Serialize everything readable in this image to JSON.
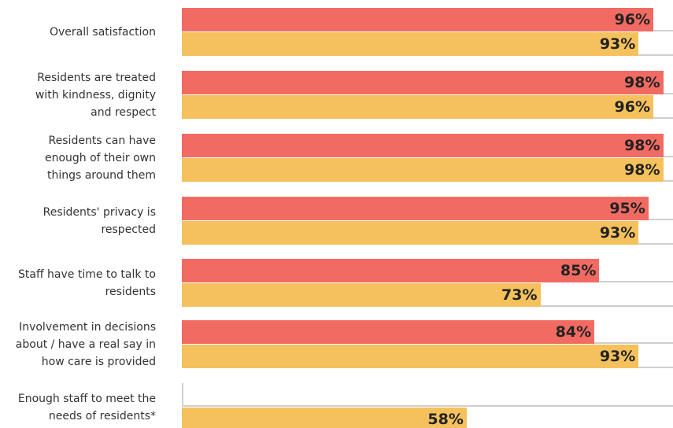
{
  "chart_data": {
    "type": "bar",
    "orientation": "horizontal",
    "categories": [
      "Overall satisfaction",
      "Residents are treated with kindness, dignity and respect",
      "Residents can have enough of their own things around them",
      "Residents' privacy is respected",
      "Staff have time to talk to residents",
      "Involvement in decisions about / have a real say in how care is provided",
      "Enough staff to meet the needs of residents*"
    ],
    "series": [
      {
        "color": "#f26b63",
        "values": [
          96,
          98,
          98,
          95,
          85,
          84,
          null
        ],
        "value_labels": [
          "96%",
          "98%",
          "98%",
          "95%",
          "85%",
          "84%",
          null
        ]
      },
      {
        "color": "#f5c15c",
        "values": [
          93,
          96,
          98,
          93,
          73,
          93,
          58
        ],
        "value_labels": [
          "93%",
          "96%",
          "98%",
          "93%",
          "73%",
          "93%",
          "58%"
        ]
      }
    ],
    "xlim": [
      0,
      100
    ]
  }
}
